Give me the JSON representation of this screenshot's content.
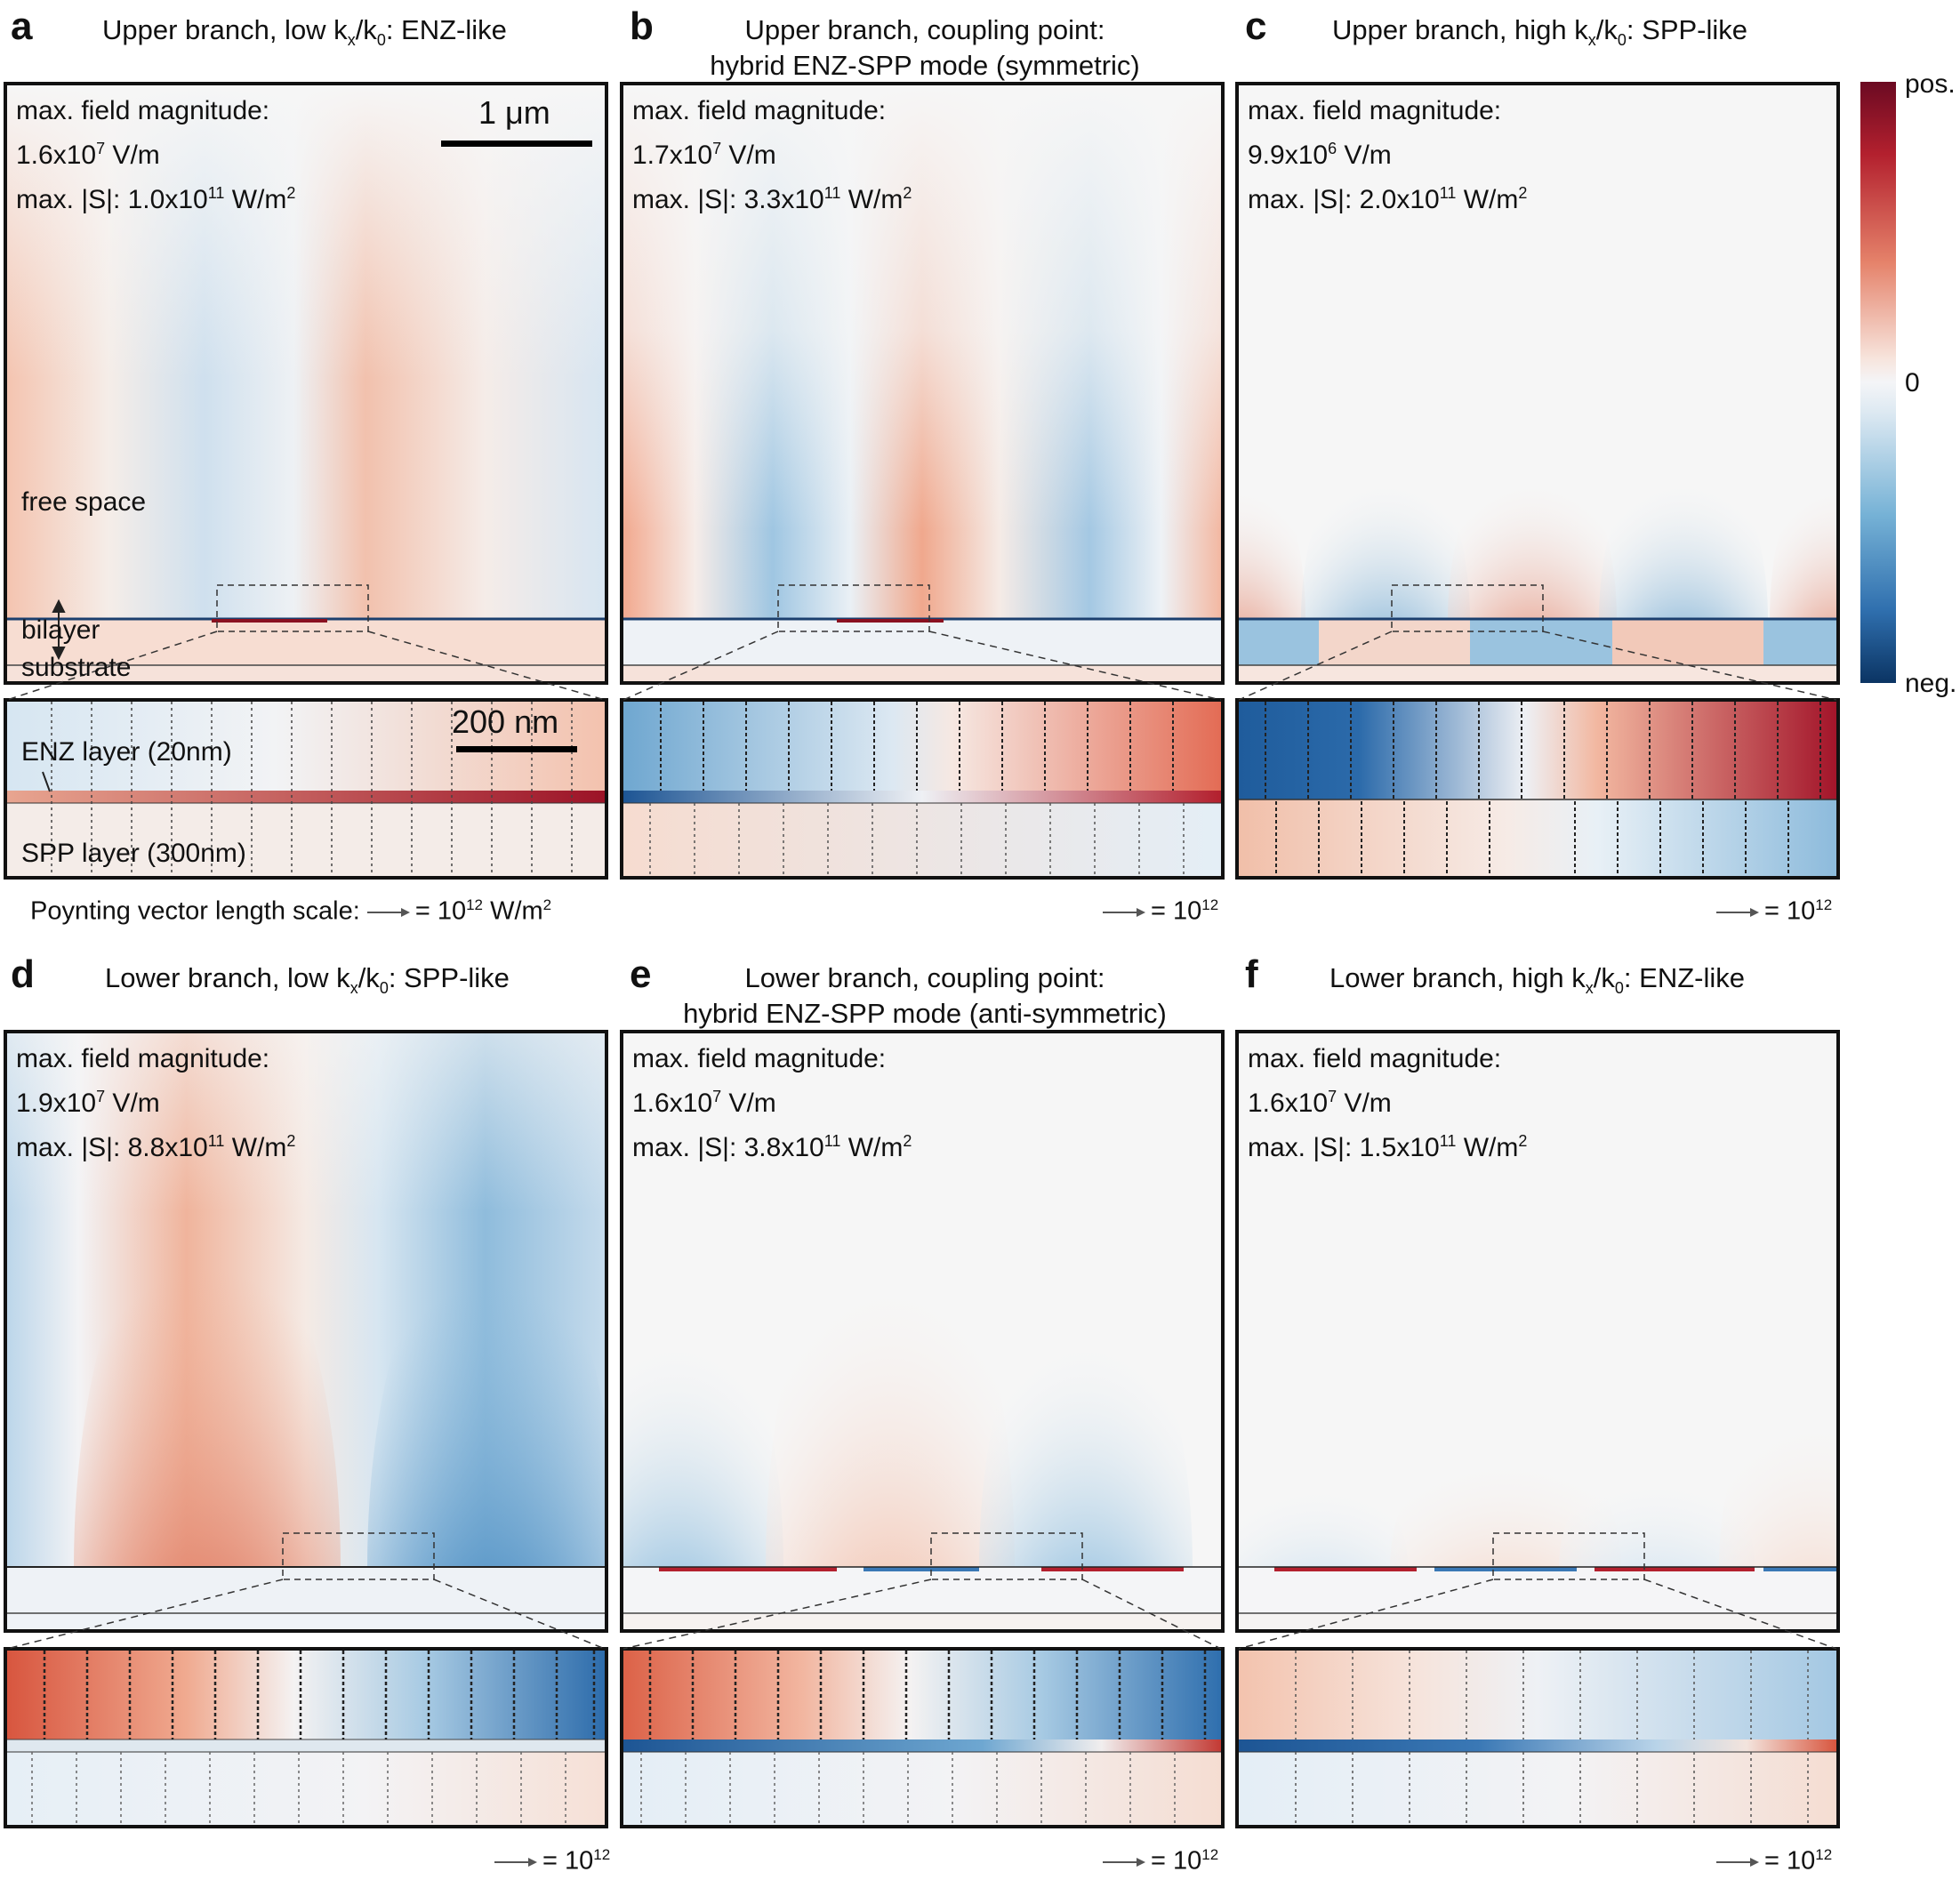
{
  "panels": [
    {
      "letter": "a",
      "title_lines": [
        "Upper branch, low k",
        "x",
        "/k",
        "0",
        ": ENZ-like"
      ],
      "field_label": "max. field magnitude:",
      "field_value": "1.6x10",
      "field_exp": "7",
      "field_unit": " V/m",
      "s_label": "max. |S|: ",
      "s_value": "1.0x10",
      "s_exp": "11",
      "s_unit": " W/m",
      "s_unit_exp": "2",
      "arrow_scale": "= 10",
      "arrow_exp": "12",
      "arrow_unit": " W/m",
      "arrow_unit_exp": "2"
    },
    {
      "letter": "b",
      "title_1": "Upper branch, coupling point:",
      "title_2": "hybrid ENZ-SPP mode (symmetric)",
      "field_label": "max. field magnitude:",
      "field_value": "1.7x10",
      "field_exp": "7",
      "field_unit": " V/m",
      "s_label": "max. |S|: ",
      "s_value": "3.3x10",
      "s_exp": "11",
      "s_unit": " W/m",
      "s_unit_exp": "2",
      "arrow_scale": "= 10",
      "arrow_exp": "12"
    },
    {
      "letter": "c",
      "title_lines": [
        "Upper branch, high k",
        "x",
        "/k",
        "0",
        ": SPP-like"
      ],
      "field_label": "max. field magnitude:",
      "field_value": "9.9x10",
      "field_exp": "6",
      "field_unit": " V/m",
      "s_label": "max. |S|: ",
      "s_value": "2.0x10",
      "s_exp": "11",
      "s_unit": " W/m",
      "s_unit_exp": "2",
      "arrow_scale": "= 10",
      "arrow_exp": "12"
    },
    {
      "letter": "d",
      "title_lines": [
        "Lower branch, low k",
        "x",
        "/k",
        "0",
        ": SPP-like"
      ],
      "field_label": "max. field magnitude:",
      "field_value": "1.9x10",
      "field_exp": "7",
      "field_unit": " V/m",
      "s_label": "max. |S|: ",
      "s_value": "8.8x10",
      "s_exp": "11",
      "s_unit": " W/m",
      "s_unit_exp": "2",
      "arrow_scale": "= 10",
      "arrow_exp": "12"
    },
    {
      "letter": "e",
      "title_1": "Lower branch, coupling point:",
      "title_2": "hybrid ENZ-SPP mode (anti-symmetric)",
      "field_label": "max. field magnitude:",
      "field_value": "1.6x10",
      "field_exp": "7",
      "field_unit": " V/m",
      "s_label": "max. |S|: ",
      "s_value": "3.8x10",
      "s_exp": "11",
      "s_unit": " W/m",
      "s_unit_exp": "2",
      "arrow_scale": "= 10",
      "arrow_exp": "12"
    },
    {
      "letter": "f",
      "title_lines": [
        "Lower branch, high k",
        "x",
        "/k",
        "0",
        ": ENZ-like"
      ],
      "field_label": "max. field magnitude:",
      "field_value": "1.6x10",
      "field_exp": "7",
      "field_unit": " V/m",
      "s_label": "max. |S|: ",
      "s_value": "1.5x10",
      "s_exp": "11",
      "s_unit": " W/m",
      "s_unit_exp": "2",
      "arrow_scale": "= 10",
      "arrow_exp": "12"
    }
  ],
  "labels": {
    "scale_1um": "1 μm",
    "scale_200nm": "200 nm",
    "free_space": "free space",
    "bilayer": "bilayer",
    "substrate": "substrate",
    "enz_layer": "ENZ layer (20nm)",
    "spp_layer": "SPP layer (300nm)",
    "poynting_scale": "Poynting vector length scale:"
  },
  "colorbar": {
    "top": "pos.",
    "mid": "0",
    "bottom": "neg.",
    "colors": {
      "pos": "#6b0a22",
      "zero": "#f4f5f7",
      "neg": "#0b3463"
    }
  }
}
